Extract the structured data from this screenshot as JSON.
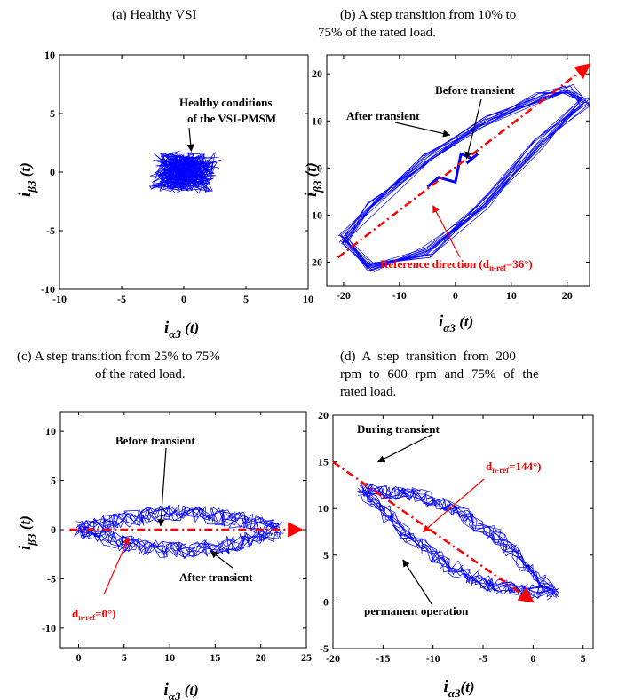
{
  "captions": {
    "a": "(a) Healthy VSI",
    "b_line1": "(b) A step transition from 10% to",
    "b_line2": "75% of the rated load.",
    "c_line1": "(c) A step transition from 25% to 75%",
    "c_line2": "of the rated load.",
    "d_line1": "(d) A step transition from 200",
    "d_line2": "rpm to 600 rpm and 75% of the",
    "d_line3": "rated load."
  },
  "colors": {
    "trace": "#0000ff",
    "reference": "#ff0000",
    "axis": "#000000"
  },
  "chart_data": [
    {
      "id": "a",
      "type": "line",
      "xlabel": "i_α3 (t)",
      "ylabel": "i_β3 (t)",
      "xlim": [
        -10,
        10
      ],
      "ylim": [
        -10,
        10
      ],
      "xticks": [
        -10,
        -5,
        0,
        5,
        10
      ],
      "yticks": [
        -10,
        -5,
        0,
        5,
        10
      ],
      "grid": false,
      "cluster": {
        "center": [
          0,
          0
        ],
        "x_extent": [
          -3,
          3.2
        ],
        "y_extent": [
          -2,
          2
        ]
      },
      "annotations": [
        {
          "text_lines": [
            "Healthy conditions",
            "of the VSI-PMSM"
          ],
          "arrow_to": [
            0.6,
            1.8
          ]
        }
      ]
    },
    {
      "id": "b",
      "type": "line",
      "xlabel": "i_α3 (t)",
      "ylabel": "i_β3 (t)",
      "xlim": [
        -23,
        24
      ],
      "ylim": [
        -25,
        24
      ],
      "xticks": [
        -20,
        -10,
        0,
        10,
        20
      ],
      "yticks": [
        -20,
        -10,
        0,
        10,
        20
      ],
      "grid": false,
      "before_transient_path": [
        [
          -5,
          -4
        ],
        [
          -3,
          -2
        ],
        [
          0,
          -3
        ],
        [
          1,
          3
        ],
        [
          3,
          2
        ],
        [
          4,
          3
        ],
        [
          2,
          1
        ]
      ],
      "after_transient_loop": [
        [
          -20,
          -15
        ],
        [
          -15,
          -8
        ],
        [
          -5,
          2
        ],
        [
          5,
          10
        ],
        [
          15,
          15
        ],
        [
          20,
          17
        ],
        [
          23,
          14
        ],
        [
          15,
          5
        ],
        [
          5,
          -8
        ],
        [
          -5,
          -18
        ],
        [
          -15,
          -21
        ],
        [
          -20,
          -15
        ]
      ],
      "reference_direction_deg": 36,
      "reference_line": [
        [
          -21,
          -19
        ],
        [
          24,
          22
        ]
      ],
      "annotations": [
        {
          "text": "Before transient",
          "arrow_to": [
            2,
            2
          ]
        },
        {
          "text": "After transient",
          "arrow_to": [
            -1,
            7
          ]
        },
        {
          "text": "Reference direction (d",
          "sub": "n-ref",
          "after": "=36°)",
          "arrow_to": [
            -4,
            -8
          ]
        }
      ]
    },
    {
      "id": "c",
      "type": "line",
      "xlabel": "i_α3 (t)",
      "ylabel": "i_β3 (t)",
      "xlim": [
        -2,
        25
      ],
      "ylim": [
        -12,
        12
      ],
      "xticks": [
        0,
        5,
        10,
        15,
        20,
        25
      ],
      "yticks": [
        -10,
        -5,
        0,
        5,
        10
      ],
      "grid": false,
      "reference_direction_deg": 0,
      "reference_line": [
        [
          -1,
          0
        ],
        [
          24.5,
          0
        ]
      ],
      "annotations": [
        {
          "text": "Before transient",
          "arrow_to": [
            9,
            0.4
          ]
        },
        {
          "text": "After transient",
          "arrow_to": [
            14.5,
            -2.2
          ]
        },
        {
          "text": "d",
          "sub": "n-ref",
          "after": "=0°)",
          "arrow_to": [
            5.5,
            -0.8
          ]
        }
      ]
    },
    {
      "id": "d",
      "type": "line",
      "xlabel": "i_α3(t)",
      "ylabel": "",
      "xlim": [
        -20,
        6
      ],
      "ylim": [
        -5,
        20
      ],
      "xticks": [
        -20,
        -15,
        -10,
        -5,
        0,
        5
      ],
      "yticks": [
        -5,
        0,
        5,
        10,
        15,
        20
      ],
      "grid": false,
      "reference_direction_deg": 144,
      "reference_line": [
        [
          -20,
          15
        ],
        [
          0,
          0
        ]
      ],
      "annotations": [
        {
          "text": "During transient",
          "arrow_to": [
            -15.5,
            15
          ]
        },
        {
          "text": "d",
          "sub": "n-ref",
          "after": "=144°)",
          "arrow_to": [
            -11,
            7.5
          ]
        },
        {
          "text": "permanent operation",
          "arrow_to": [
            -13,
            4.5
          ]
        }
      ]
    }
  ]
}
